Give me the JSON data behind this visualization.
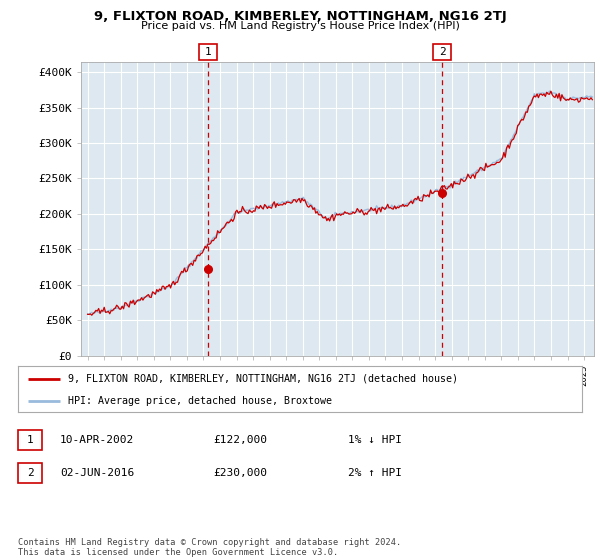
{
  "title": "9, FLIXTON ROAD, KIMBERLEY, NOTTINGHAM, NG16 2TJ",
  "subtitle": "Price paid vs. HM Land Registry's House Price Index (HPI)",
  "ylabel_ticks": [
    "£0",
    "£50K",
    "£100K",
    "£150K",
    "£200K",
    "£250K",
    "£300K",
    "£350K",
    "£400K"
  ],
  "ytick_values": [
    0,
    50000,
    100000,
    150000,
    200000,
    250000,
    300000,
    350000,
    400000
  ],
  "ylim": [
    0,
    415000
  ],
  "xlim_start": 1994.6,
  "xlim_end": 2025.6,
  "marker1_x": 2002.28,
  "marker1_y": 122000,
  "marker1_label": "1",
  "marker2_x": 2016.42,
  "marker2_y": 230000,
  "marker2_label": "2",
  "legend_line1": "9, FLIXTON ROAD, KIMBERLEY, NOTTINGHAM, NG16 2TJ (detached house)",
  "legend_line2": "HPI: Average price, detached house, Broxtowe",
  "table_row1_num": "1",
  "table_row1_date": "10-APR-2002",
  "table_row1_price": "£122,000",
  "table_row1_hpi": "1% ↓ HPI",
  "table_row2_num": "2",
  "table_row2_date": "02-JUN-2016",
  "table_row2_price": "£230,000",
  "table_row2_hpi": "2% ↑ HPI",
  "footer": "Contains HM Land Registry data © Crown copyright and database right 2024.\nThis data is licensed under the Open Government Licence v3.0.",
  "line_color_property": "#cc0000",
  "line_color_hpi": "#99bbdd",
  "marker_color": "#cc0000",
  "vline_color": "#cc0000",
  "background_color": "#ffffff",
  "plot_bg_color": "#dde8f0",
  "grid_color": "#ffffff"
}
